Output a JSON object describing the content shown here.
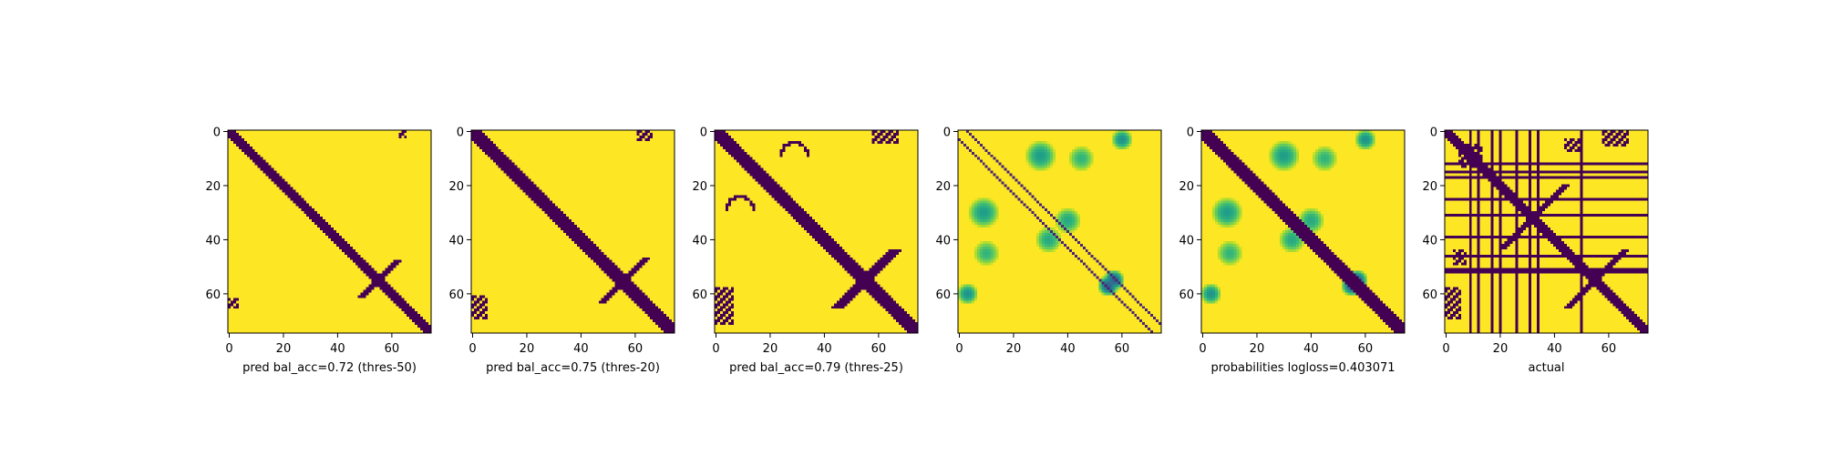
{
  "chart_data": [
    {
      "type": "heatmap",
      "title": "",
      "xlabel": "pred bal_acc=0.72 (thres-50)",
      "ylabel": "",
      "size": 75,
      "xticks": [
        0,
        20,
        40,
        60
      ],
      "yticks": [
        0,
        20,
        40,
        60
      ],
      "colormap": "viridis",
      "binary": true,
      "structures": [
        {
          "kind": "diagonal",
          "offset": 0,
          "width": 2.6,
          "from": 0,
          "to": 75,
          "value": 0
        },
        {
          "kind": "diagonal",
          "offset": 0,
          "width": 1.2,
          "from": 48,
          "to": 62,
          "anti": true,
          "value": 0
        },
        {
          "kind": "block",
          "x": [
            63,
            66
          ],
          "y": [
            0,
            3
          ],
          "value": 0
        },
        {
          "kind": "block",
          "x": [
            0,
            4
          ],
          "y": [
            62,
            66
          ],
          "value": 0
        }
      ]
    },
    {
      "type": "heatmap",
      "title": "",
      "xlabel": "pred bal_acc=0.75 (thres-20)",
      "ylabel": "",
      "size": 75,
      "xticks": [
        0,
        20,
        40,
        60
      ],
      "yticks": [
        0,
        20,
        40,
        60
      ],
      "colormap": "viridis",
      "binary": true,
      "structures": [
        {
          "kind": "diagonal",
          "offset": 0,
          "width": 3.2,
          "from": 0,
          "to": 75,
          "value": 0
        },
        {
          "kind": "diagonal",
          "offset": 0,
          "width": 1.4,
          "from": 47,
          "to": 64,
          "anti": true,
          "value": 0
        },
        {
          "kind": "block",
          "x": [
            61,
            67
          ],
          "y": [
            0,
            4
          ],
          "value": 0
        },
        {
          "kind": "block",
          "x": [
            0,
            6
          ],
          "y": [
            61,
            70
          ],
          "value": 0
        }
      ]
    },
    {
      "type": "heatmap",
      "title": "",
      "xlabel": "pred bal_acc=0.79 (thres-25)",
      "ylabel": "",
      "size": 75,
      "xticks": [
        0,
        20,
        40,
        60
      ],
      "yticks": [
        0,
        20,
        40,
        60
      ],
      "colormap": "viridis",
      "binary": true,
      "structures": [
        {
          "kind": "diagonal",
          "offset": 0,
          "width": 3.8,
          "from": 0,
          "to": 75,
          "value": 0
        },
        {
          "kind": "diagonal",
          "offset": 0,
          "width": 2.0,
          "from": 44,
          "to": 66,
          "anti": true,
          "value": 0
        },
        {
          "kind": "block",
          "x": [
            58,
            68
          ],
          "y": [
            0,
            5
          ],
          "value": 0
        },
        {
          "kind": "block",
          "x": [
            0,
            7
          ],
          "y": [
            58,
            72
          ],
          "value": 0
        },
        {
          "kind": "arc",
          "cx": 29,
          "cy": 9,
          "r": 5,
          "value": 0
        },
        {
          "kind": "arc",
          "cx": 9,
          "cy": 29,
          "r": 5,
          "value": 0
        }
      ]
    },
    {
      "type": "heatmap",
      "title": "",
      "xlabel": "",
      "ylabel": "",
      "size": 75,
      "xticks": [
        0,
        20,
        40,
        60
      ],
      "yticks": [
        0,
        20,
        40,
        60
      ],
      "colormap": "viridis",
      "binary": false,
      "structures": [
        {
          "kind": "diagonal",
          "offset": 0,
          "width": 0,
          "from": 0,
          "to": 75,
          "value": 1.0
        },
        {
          "kind": "diagonal",
          "offset": 3,
          "width": 0.6,
          "from": 0,
          "to": 75,
          "value": 0.1
        },
        {
          "kind": "diagonal",
          "offset": -3,
          "width": 0.6,
          "from": 0,
          "to": 75,
          "value": 0.1
        },
        {
          "kind": "blob",
          "cx": 30,
          "cy": 9,
          "r": 6,
          "value": 0.55
        },
        {
          "kind": "blob",
          "cx": 9,
          "cy": 30,
          "r": 6,
          "value": 0.55
        },
        {
          "kind": "blob",
          "cx": 60,
          "cy": 3,
          "r": 4,
          "value": 0.5
        },
        {
          "kind": "blob",
          "cx": 3,
          "cy": 60,
          "r": 4,
          "value": 0.5
        },
        {
          "kind": "blob",
          "cx": 40,
          "cy": 33,
          "r": 5,
          "value": 0.6
        },
        {
          "kind": "blob",
          "cx": 33,
          "cy": 40,
          "r": 5,
          "value": 0.6
        },
        {
          "kind": "blob",
          "cx": 57,
          "cy": 55,
          "r": 4,
          "value": 0.3
        },
        {
          "kind": "blob",
          "cx": 55,
          "cy": 57,
          "r": 4,
          "value": 0.3
        },
        {
          "kind": "blob",
          "cx": 45,
          "cy": 10,
          "r": 5,
          "value": 0.65
        },
        {
          "kind": "blob",
          "cx": 10,
          "cy": 45,
          "r": 5,
          "value": 0.65
        }
      ]
    },
    {
      "type": "heatmap",
      "title": "",
      "xlabel": "probabilities logloss=0.403071",
      "ylabel": "",
      "size": 75,
      "xticks": [
        0,
        20,
        40,
        60
      ],
      "yticks": [
        0,
        20,
        40,
        60
      ],
      "colormap": "viridis",
      "binary": false,
      "structures": [
        {
          "kind": "diagonal",
          "offset": 0,
          "width": 3.0,
          "from": 0,
          "to": 75,
          "value": 0.0
        },
        {
          "kind": "blob",
          "cx": 30,
          "cy": 9,
          "r": 6,
          "value": 0.55
        },
        {
          "kind": "blob",
          "cx": 9,
          "cy": 30,
          "r": 6,
          "value": 0.55
        },
        {
          "kind": "blob",
          "cx": 60,
          "cy": 3,
          "r": 4,
          "value": 0.5
        },
        {
          "kind": "blob",
          "cx": 3,
          "cy": 60,
          "r": 4,
          "value": 0.5
        },
        {
          "kind": "blob",
          "cx": 40,
          "cy": 33,
          "r": 5,
          "value": 0.6
        },
        {
          "kind": "blob",
          "cx": 33,
          "cy": 40,
          "r": 5,
          "value": 0.6
        },
        {
          "kind": "blob",
          "cx": 57,
          "cy": 55,
          "r": 4,
          "value": 0.3
        },
        {
          "kind": "blob",
          "cx": 55,
          "cy": 57,
          "r": 4,
          "value": 0.3
        },
        {
          "kind": "blob",
          "cx": 45,
          "cy": 10,
          "r": 5,
          "value": 0.65
        },
        {
          "kind": "blob",
          "cx": 10,
          "cy": 45,
          "r": 5,
          "value": 0.65
        }
      ]
    },
    {
      "type": "heatmap",
      "title": "",
      "xlabel": "actual",
      "ylabel": "",
      "size": 75,
      "xticks": [
        0,
        20,
        40,
        60
      ],
      "yticks": [
        0,
        20,
        40,
        60
      ],
      "colormap": "viridis",
      "binary": true,
      "structures": [
        {
          "kind": "diagonal",
          "offset": 0,
          "width": 2.2,
          "from": 0,
          "to": 75,
          "value": 0
        },
        {
          "kind": "diagonal",
          "offset": 0,
          "width": 1.6,
          "from": 20,
          "to": 44,
          "anti": true,
          "value": 0
        },
        {
          "kind": "diagonal",
          "offset": 0,
          "width": 1.6,
          "from": 44,
          "to": 66,
          "anti": true,
          "value": 0
        },
        {
          "kind": "block",
          "x": [
            58,
            68
          ],
          "y": [
            0,
            6
          ],
          "value": 0
        },
        {
          "kind": "block",
          "x": [
            0,
            6
          ],
          "y": [
            58,
            70
          ],
          "value": 0
        },
        {
          "kind": "block",
          "x": [
            8,
            14
          ],
          "y": [
            5,
            11
          ],
          "value": 0
        },
        {
          "kind": "block",
          "x": [
            5,
            11
          ],
          "y": [
            8,
            14
          ],
          "value": 0
        },
        {
          "kind": "block",
          "x": [
            44,
            50
          ],
          "y": [
            3,
            8
          ],
          "value": 0
        },
        {
          "kind": "block",
          "x": [
            3,
            8
          ],
          "y": [
            44,
            50
          ],
          "value": 0
        },
        {
          "kind": "rows",
          "indices": [
            12,
            15,
            17,
            25,
            31,
            39,
            46,
            51,
            52
          ],
          "value": 0
        },
        {
          "kind": "cols",
          "indices": [
            9,
            12,
            17,
            20,
            26,
            31,
            34,
            50
          ],
          "value": 0
        }
      ]
    }
  ]
}
